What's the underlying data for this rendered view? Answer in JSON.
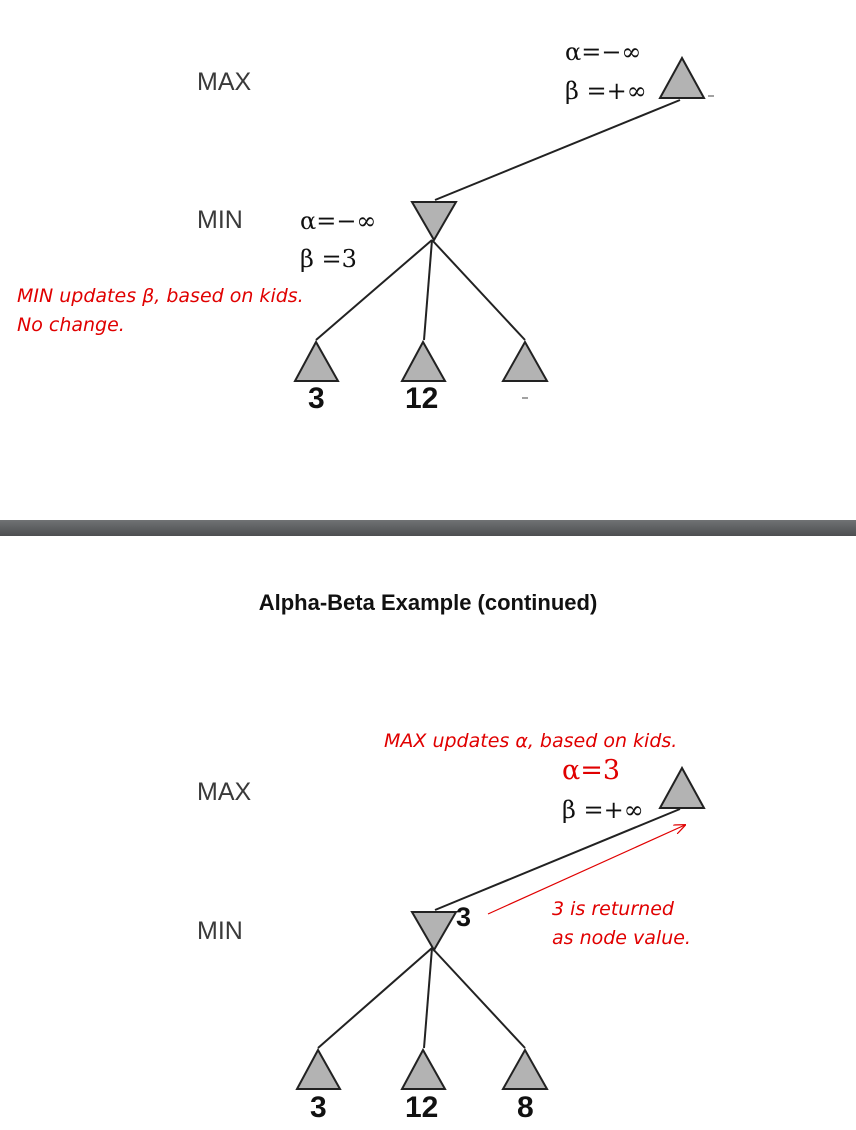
{
  "top": {
    "max_label": "MAX",
    "min_label": "MIN",
    "max_alpha": "α=−∞",
    "max_beta": "β =+∞",
    "min_alpha": "α=−∞",
    "min_beta": "β =3",
    "note_line1": "MIN updates β, based on kids.",
    "note_line2": "No change.",
    "leaf_values": [
      "3",
      "12"
    ]
  },
  "bottom": {
    "title": "Alpha-Beta Example (continued)",
    "max_label": "MAX",
    "min_label": "MIN",
    "max_note": "MAX updates α, based on kids.",
    "max_alpha": "α=3",
    "max_beta": "β =+∞",
    "min_value": "3",
    "return_note_line1": "3 is returned",
    "return_note_line2": "as node value.",
    "leaf_values": [
      "3",
      "12",
      "8"
    ]
  },
  "colors": {
    "node_fill": "#b3b3b3",
    "annotation_red": "#e00000"
  }
}
